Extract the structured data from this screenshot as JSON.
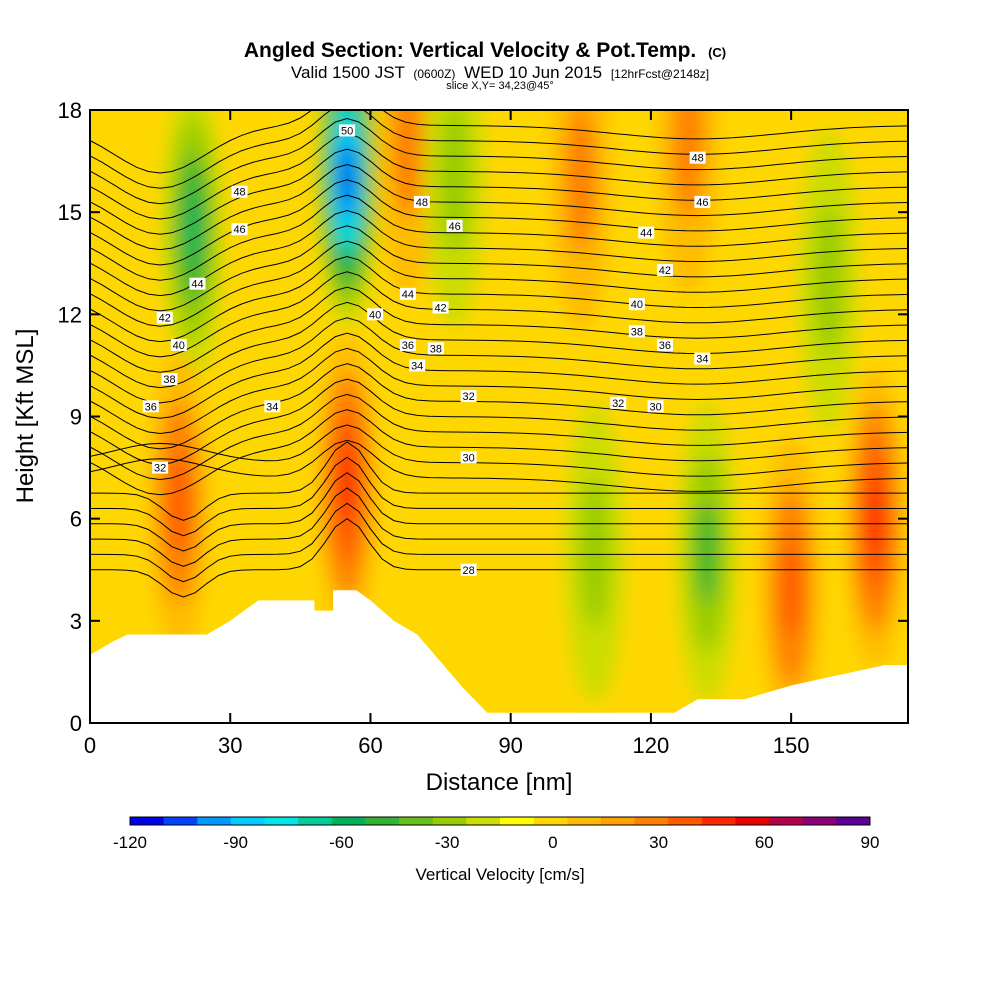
{
  "chart_data": {
    "type": "heatmap",
    "title": "Angled Section: Vertical Velocity & Pot.Temp.",
    "title_suffix": "(C)",
    "subtitle_parts": [
      "Valid 1500 JST",
      "(0600Z)",
      "WED 10 Jun 2015",
      "[12hrFcst@2148z]"
    ],
    "slice_label": "slice X,Y= 34,23@45°",
    "xlabel": "Distance [nm]",
    "ylabel": "Height [Kft MSL]",
    "xlim": [
      0,
      175
    ],
    "ylim": [
      0,
      18
    ],
    "x_ticks": [
      0,
      30,
      60,
      90,
      120,
      150
    ],
    "y_ticks": [
      0,
      3,
      6,
      9,
      12,
      15,
      18
    ],
    "colorbar": {
      "label": "Vertical Velocity [cm/s]",
      "min": -120,
      "max": 90,
      "step": 10,
      "tick_values": [
        -120,
        -90,
        -60,
        -30,
        0,
        30,
        60,
        90
      ],
      "colors": [
        "#0000e6",
        "#0044ff",
        "#0099ff",
        "#00ccff",
        "#00e6e6",
        "#00cc99",
        "#00b35a",
        "#33b233",
        "#66bf1a",
        "#99cc00",
        "#ccdd00",
        "#ffff00",
        "#ffd700",
        "#ffbb00",
        "#ffa200",
        "#ff8000",
        "#ff5a00",
        "#ff2800",
        "#e60000",
        "#b4004b",
        "#8c0078",
        "#5a0096"
      ]
    },
    "vertical_velocity_features": [
      {
        "x": 22,
        "y": 14.5,
        "value": -55
      },
      {
        "x": 19,
        "y": 6.5,
        "value": 45
      },
      {
        "x": 55,
        "y": 16,
        "value": -115
      },
      {
        "x": 55,
        "y": 7,
        "value": 55
      },
      {
        "x": 68,
        "y": 17,
        "value": 35
      },
      {
        "x": 78,
        "y": 16,
        "value": -30
      },
      {
        "x": 105,
        "y": 16,
        "value": 30
      },
      {
        "x": 108,
        "y": 5,
        "value": -25
      },
      {
        "x": 128,
        "y": 17,
        "value": 35
      },
      {
        "x": 132,
        "y": 5,
        "value": -45
      },
      {
        "x": 150,
        "y": 4,
        "value": 45
      },
      {
        "x": 158,
        "y": 13,
        "value": -25
      },
      {
        "x": 168,
        "y": 6,
        "value": 55
      }
    ],
    "terrain": [
      [
        0,
        2
      ],
      [
        5,
        2.4
      ],
      [
        8,
        2.6
      ],
      [
        25,
        2.6
      ],
      [
        30,
        3
      ],
      [
        36,
        3.6
      ],
      [
        48,
        3.6
      ],
      [
        48,
        3.3
      ],
      [
        52,
        3.3
      ],
      [
        52,
        3.9
      ],
      [
        57,
        3.9
      ],
      [
        60,
        3.6
      ],
      [
        65,
        3
      ],
      [
        70,
        2.6
      ],
      [
        75,
        1.8
      ],
      [
        80,
        1
      ],
      [
        85,
        0.3
      ],
      [
        108,
        0.3
      ],
      [
        125,
        0.3
      ],
      [
        130,
        0.7
      ],
      [
        140,
        0.7
      ],
      [
        150,
        1.1
      ],
      [
        160,
        1.4
      ],
      [
        170,
        1.7
      ],
      [
        175,
        1.7
      ]
    ],
    "theta_contour_labels": [
      {
        "text": "32",
        "x": 15,
        "y": 7.5
      },
      {
        "text": "30",
        "x": 81,
        "y": 7.8
      },
      {
        "text": "28",
        "x": 81,
        "y": 4.5
      },
      {
        "text": "34",
        "x": 39,
        "y": 9.3
      },
      {
        "text": "34",
        "x": 70,
        "y": 10.5
      },
      {
        "text": "34",
        "x": 131,
        "y": 10.7
      },
      {
        "text": "32",
        "x": 81,
        "y": 9.6
      },
      {
        "text": "32",
        "x": 113,
        "y": 9.4
      },
      {
        "text": "30",
        "x": 121,
        "y": 9.3
      },
      {
        "text": "36",
        "x": 13,
        "y": 9.3
      },
      {
        "text": "38",
        "x": 17,
        "y": 10.1
      },
      {
        "text": "40",
        "x": 19,
        "y": 11.1
      },
      {
        "text": "42",
        "x": 16,
        "y": 11.9
      },
      {
        "text": "44",
        "x": 23,
        "y": 12.9
      },
      {
        "text": "46",
        "x": 32,
        "y": 14.5
      },
      {
        "text": "48",
        "x": 32,
        "y": 15.6
      },
      {
        "text": "50",
        "x": 55,
        "y": 17.4
      },
      {
        "text": "48",
        "x": 71,
        "y": 15.3
      },
      {
        "text": "46",
        "x": 78,
        "y": 14.6
      },
      {
        "text": "44",
        "x": 68,
        "y": 12.6
      },
      {
        "text": "42",
        "x": 75,
        "y": 12.2
      },
      {
        "text": "40",
        "x": 61,
        "y": 12
      },
      {
        "text": "36",
        "x": 68,
        "y": 11.1
      },
      {
        "text": "38",
        "x": 74,
        "y": 11
      },
      {
        "text": "40",
        "x": 117,
        "y": 12.3
      },
      {
        "text": "38",
        "x": 117,
        "y": 11.5
      },
      {
        "text": "36",
        "x": 123,
        "y": 11.1
      },
      {
        "text": "42",
        "x": 123,
        "y": 13.3
      },
      {
        "text": "44",
        "x": 119,
        "y": 14.4
      },
      {
        "text": "46",
        "x": 131,
        "y": 15.3
      },
      {
        "text": "48",
        "x": 130,
        "y": 16.6
      }
    ]
  }
}
